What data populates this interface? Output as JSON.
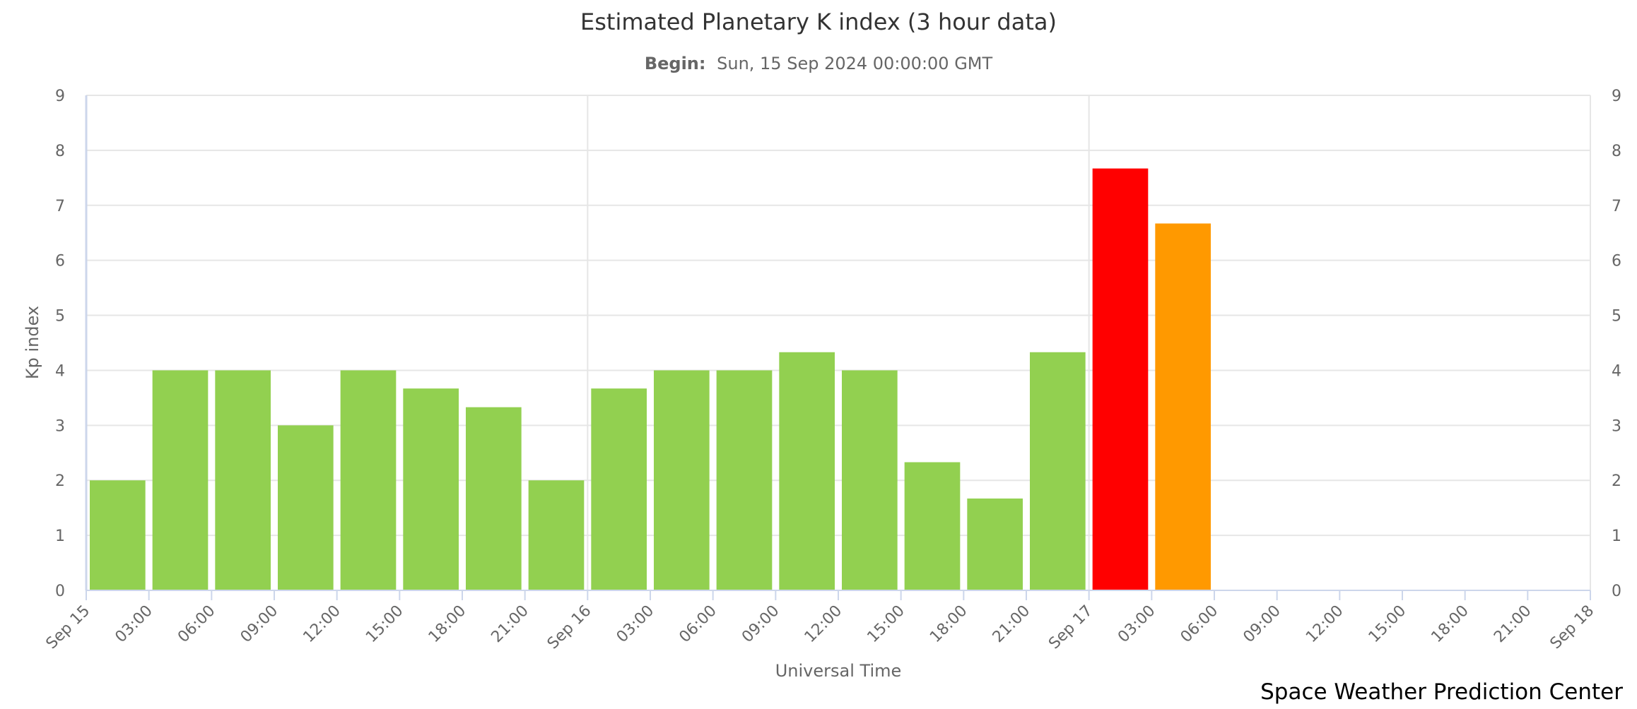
{
  "chart_data": {
    "type": "bar",
    "title": "Estimated Planetary K index (3 hour data)",
    "subtitle_label": "Begin:",
    "subtitle_value": "Sun, 15 Sep 2024 00:00:00 GMT",
    "xlabel": "Universal Time",
    "ylabel": "Kp index",
    "ylim": [
      0,
      9
    ],
    "yticks": [
      "0",
      "1",
      "2",
      "3",
      "4",
      "5",
      "6",
      "7",
      "8",
      "9"
    ],
    "xticks": [
      "Sep 15",
      "03:00",
      "06:00",
      "09:00",
      "12:00",
      "15:00",
      "18:00",
      "21:00",
      "Sep 16",
      "03:00",
      "06:00",
      "09:00",
      "12:00",
      "15:00",
      "18:00",
      "21:00",
      "Sep 17",
      "03:00",
      "06:00",
      "09:00",
      "12:00",
      "15:00",
      "18:00",
      "21:00",
      "Sep 18"
    ],
    "xlim_hours_range": 72,
    "values": [
      2.0,
      4.0,
      4.0,
      3.0,
      4.0,
      3.67,
      3.33,
      2.0,
      3.67,
      4.0,
      4.0,
      4.33,
      4.0,
      2.33,
      1.67,
      4.33,
      7.67,
      6.67
    ],
    "colors": [
      "#92d050",
      "#92d050",
      "#92d050",
      "#92d050",
      "#92d050",
      "#92d050",
      "#92d050",
      "#92d050",
      "#92d050",
      "#92d050",
      "#92d050",
      "#92d050",
      "#92d050",
      "#92d050",
      "#92d050",
      "#92d050",
      "#ff0000",
      "#ff9900"
    ],
    "grid": true,
    "legend": "none"
  },
  "credits": "Space Weather Prediction Center"
}
